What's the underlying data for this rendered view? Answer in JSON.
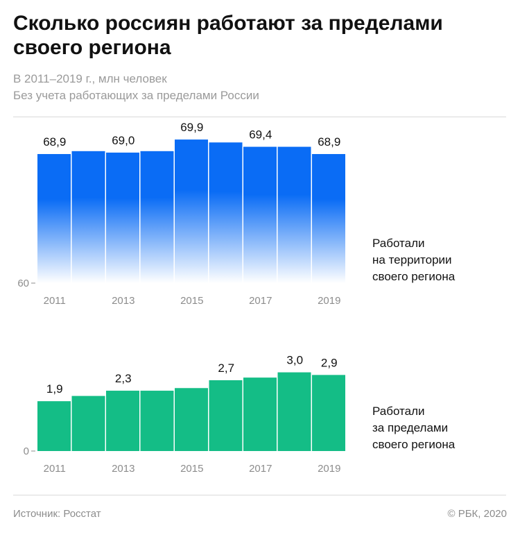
{
  "header": {
    "title": "Сколько россиян работают за пределами своего региона",
    "subtitle_1": "В 2011–2019 г., млн человек",
    "subtitle_2": "Без учета работающих за пределами России"
  },
  "chart_data": [
    {
      "type": "bar",
      "name": "Работали на территории своего региона",
      "side_label_lines": [
        "Работали",
        "на территории",
        "своего региона"
      ],
      "categories": [
        "2011",
        "2012",
        "2013",
        "2014",
        "2015",
        "2016",
        "2017",
        "2018",
        "2019"
      ],
      "values": [
        68.9,
        69.1,
        69.0,
        69.1,
        69.9,
        69.7,
        69.4,
        69.4,
        68.9
      ],
      "labeled_values": [
        "68,9",
        "",
        "69,0",
        "",
        "69,9",
        "",
        "69,4",
        "",
        "68,9"
      ],
      "tick_labels": [
        "2011",
        "",
        "2013",
        "",
        "2015",
        "",
        "2017",
        "",
        "2019"
      ],
      "y_tick_label": "60",
      "ylim": [
        60,
        70
      ],
      "color_top": "#0a6cf5",
      "color_bottom": "#ffffff"
    },
    {
      "type": "bar",
      "name": "Работали за пределами своего региона",
      "side_label_lines": [
        "Работали",
        "за пределами",
        "своего региона"
      ],
      "categories": [
        "2011",
        "2012",
        "2013",
        "2014",
        "2015",
        "2016",
        "2017",
        "2018",
        "2019"
      ],
      "values": [
        1.9,
        2.1,
        2.3,
        2.3,
        2.4,
        2.7,
        2.8,
        3.0,
        2.9
      ],
      "labeled_values": [
        "1,9",
        "",
        "2,3",
        "",
        "",
        "2,7",
        "",
        "3,0",
        "2,9"
      ],
      "tick_labels": [
        "2011",
        "",
        "2013",
        "",
        "2015",
        "",
        "2017",
        "",
        "2019"
      ],
      "y_tick_label": "0",
      "ylim": [
        0,
        3.65
      ],
      "color": "#14bd86"
    }
  ],
  "footer": {
    "source": "Источник: Росстат",
    "copyright": "© РБК, 2020"
  }
}
